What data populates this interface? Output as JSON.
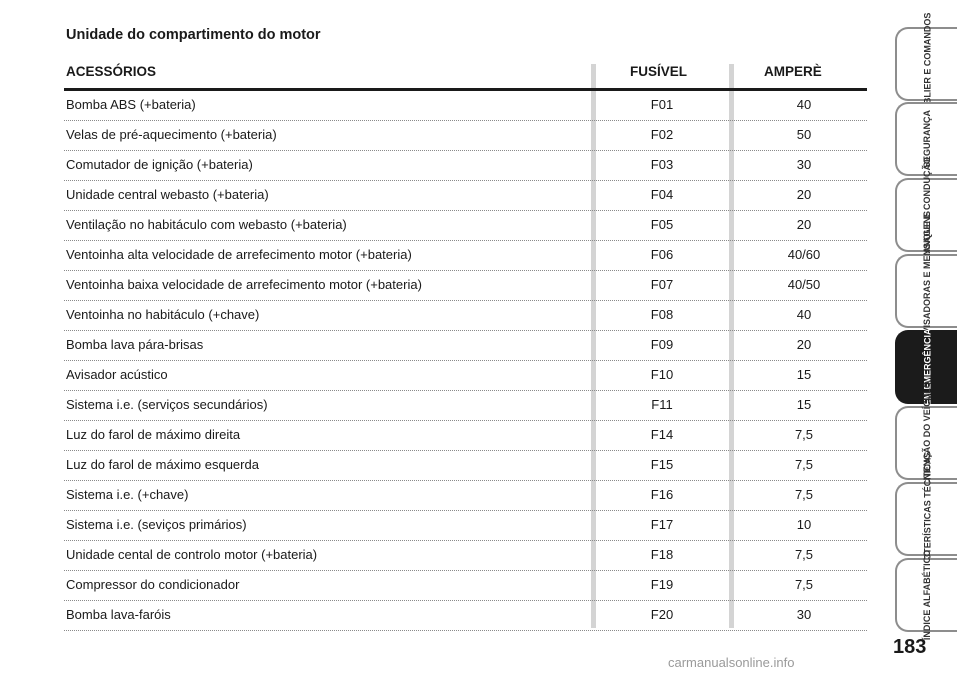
{
  "section_title": "Unidade do compartimento do motor",
  "table": {
    "headers": {
      "accessories": "ACESSÓRIOS",
      "fuse": "FUSÍVEL",
      "ampere": "AMPERÈ"
    },
    "rows": [
      {
        "desc": "Bomba ABS (+bateria)",
        "fuse": "F01",
        "amp": "40"
      },
      {
        "desc": "Velas de pré-aquecimento (+bateria)",
        "fuse": "F02",
        "amp": "50"
      },
      {
        "desc": "Comutador de ignição (+bateria)",
        "fuse": "F03",
        "amp": "30"
      },
      {
        "desc": "Unidade central webasto (+bateria)",
        "fuse": "F04",
        "amp": "20"
      },
      {
        "desc": "Ventilação no habitáculo com webasto (+bateria)",
        "fuse": "F05",
        "amp": "20"
      },
      {
        "desc": "Ventoinha alta velocidade de arrefecimento motor (+bateria)",
        "fuse": "F06",
        "amp": "40/60"
      },
      {
        "desc": "Ventoinha baixa velocidade de arrefecimento motor (+bateria)",
        "fuse": "F07",
        "amp": "40/50"
      },
      {
        "desc": "Ventoinha no habitáculo (+chave)",
        "fuse": "F08",
        "amp": "40"
      },
      {
        "desc": "Bomba lava pára-brisas",
        "fuse": "F09",
        "amp": "20"
      },
      {
        "desc": "Avisador acústico",
        "fuse": "F10",
        "amp": "15"
      },
      {
        "desc": "Sistema i.e. (serviços secundários)",
        "fuse": "F11",
        "amp": "15"
      },
      {
        "desc": "Luz do farol de máximo direita",
        "fuse": "F14",
        "amp": "7,5"
      },
      {
        "desc": "Luz do farol de máximo esquerda",
        "fuse": "F15",
        "amp": "7,5"
      },
      {
        "desc": "Sistema i.e. (+chave)",
        "fuse": "F16",
        "amp": "7,5"
      },
      {
        "desc": "Sistema i.e. (seviços primários)",
        "fuse": "F17",
        "amp": "10"
      },
      {
        "desc": "Unidade cental de controlo motor (+bateria)",
        "fuse": "F18",
        "amp": "7,5"
      },
      {
        "desc": "Compressor do condicionador",
        "fuse": "F19",
        "amp": "7,5"
      },
      {
        "desc": "Bomba lava-faróis",
        "fuse": "F20",
        "amp": "30"
      }
    ]
  },
  "side_tabs": [
    {
      "label": "TABLIER E COMANDOS",
      "active": false
    },
    {
      "label": "SEGURANÇA",
      "active": false
    },
    {
      "label": "ARRANQUE E CONDUÇÃO",
      "active": false
    },
    {
      "label": "LUZES AVISADORAS E MENSAGENS",
      "active": false
    },
    {
      "label": "EM EMERGÊNCIA",
      "active": true
    },
    {
      "label": "MANUTENÇÃO DO VEÍCULO",
      "active": false
    },
    {
      "label": "CARACTERÍSTICAS TÉCNICAS",
      "active": false
    },
    {
      "label": "ÍNDICE ALFABÉTICO",
      "active": false
    }
  ],
  "page_number": "183",
  "watermark": "carmanualsonline.info",
  "colors": {
    "text": "#1a1a1a",
    "column_bar": "#d4d4d4",
    "active_tab": "#1b1b1b",
    "tab_border": "#8d8d8d"
  }
}
